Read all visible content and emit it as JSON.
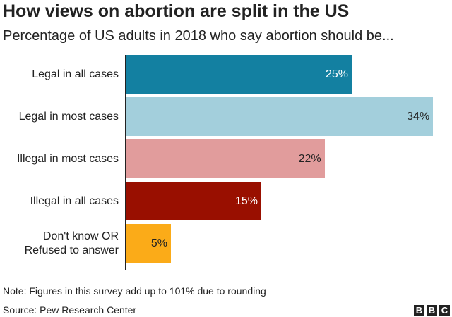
{
  "chart_data": {
    "type": "bar",
    "orientation": "horizontal",
    "title": "How views on abortion are split in the US",
    "subtitle": "Percentage of US adults in 2018 who say abortion should be...",
    "categories": [
      "Legal in all cases",
      "Legal in most cases",
      "Illegal in most cases",
      "Illegal in all cases",
      "Don't know OR\nRefused to answer"
    ],
    "values": [
      25,
      34,
      22,
      15,
      5
    ],
    "value_labels": [
      "25%",
      "34%",
      "22%",
      "15%",
      "5%"
    ],
    "colors": [
      "#1380a1",
      "#a3cfdc",
      "#e19c9c",
      "#990f00",
      "#fbab18"
    ],
    "note": "Note: Figures in this survey add up to 101% due to rounding",
    "source": "Source: Pew Research Center",
    "logo": [
      "B",
      "B",
      "C"
    ]
  }
}
